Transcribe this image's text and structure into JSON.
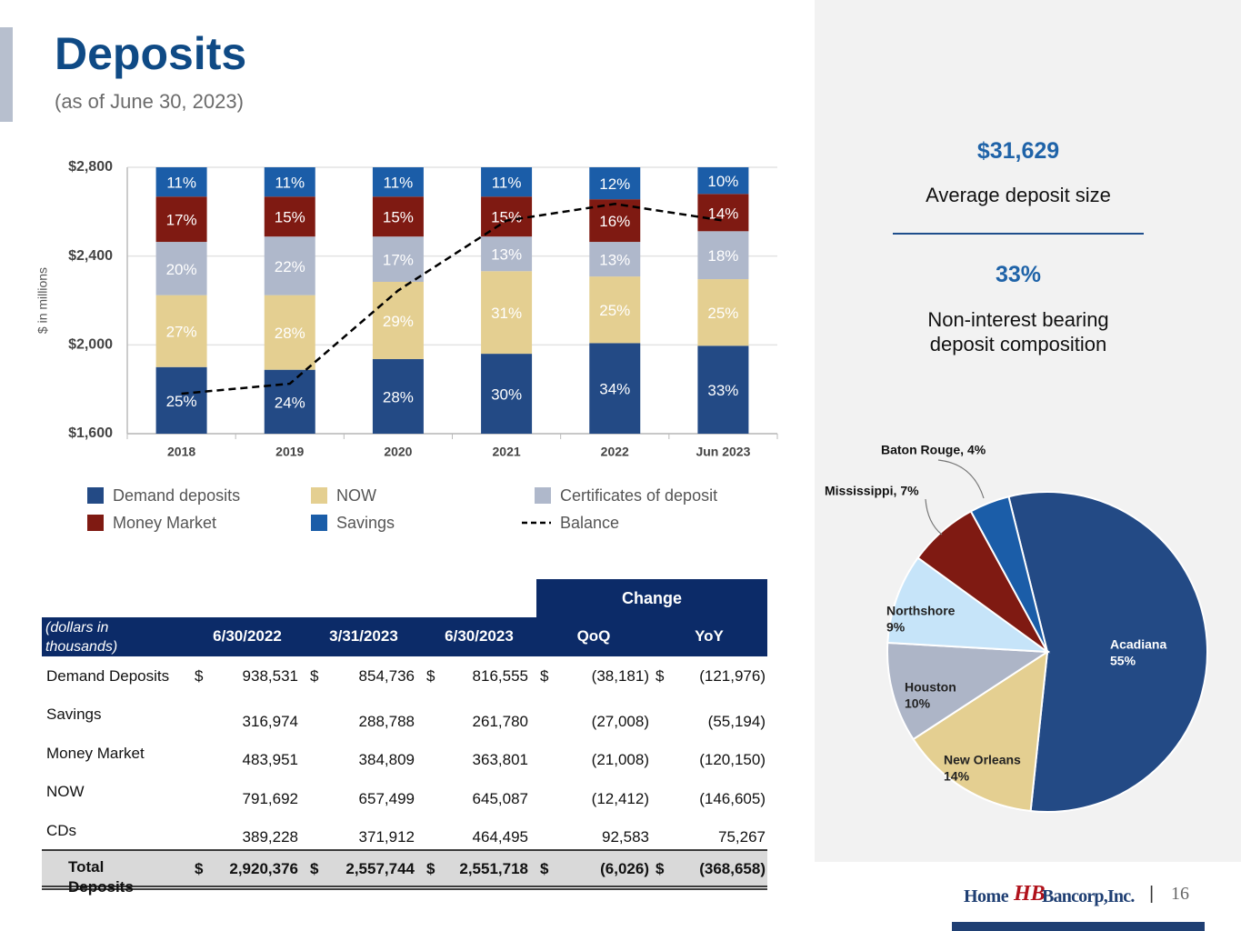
{
  "header": {
    "title": "Deposits",
    "subtitle": "(as of June 30, 2023)"
  },
  "chart_data": [
    {
      "type": "bar",
      "stacked": true,
      "y_axis_label": "$ in millions",
      "categories": [
        "2018",
        "2019",
        "2020",
        "2021",
        "2022",
        "Jun 2023"
      ],
      "ylim": [
        1600,
        2800
      ],
      "yticks": [
        {
          "value": 1600,
          "label": "$1,600"
        },
        {
          "value": 2000,
          "label": "$2,000"
        },
        {
          "value": 2400,
          "label": "$2,400"
        },
        {
          "value": 2800,
          "label": "$2,800"
        }
      ],
      "y2lim": [
        0,
        100
      ],
      "grid": true,
      "series": [
        {
          "name": "Demand deposits",
          "color": "#234a85",
          "axis": "y2",
          "values": [
            25,
            24,
            28,
            30,
            34,
            33
          ],
          "value_labels": [
            "25%",
            "24%",
            "28%",
            "30%",
            "34%",
            "33%"
          ]
        },
        {
          "name": "NOW",
          "color": "#e4cf91",
          "axis": "y2",
          "values": [
            27,
            28,
            29,
            31,
            25,
            25
          ],
          "value_labels": [
            "27%",
            "28%",
            "29%",
            "31%",
            "25%",
            "25%"
          ]
        },
        {
          "name": "Certificates of deposit",
          "color": "#afb8cb",
          "axis": "y2",
          "values": [
            20,
            22,
            17,
            13,
            13,
            18
          ],
          "value_labels": [
            "20%",
            "22%",
            "17%",
            "13%",
            "13%",
            "18%"
          ]
        },
        {
          "name": "Money Market",
          "color": "#7f1a12",
          "axis": "y2",
          "values": [
            17,
            15,
            15,
            15,
            16,
            14
          ],
          "value_labels": [
            "17%",
            "15%",
            "15%",
            "15%",
            "16%",
            "14%"
          ]
        },
        {
          "name": "Savings",
          "color": "#1b5da8",
          "axis": "y2",
          "values": [
            11,
            11,
            11,
            11,
            12,
            10
          ],
          "value_labels": [
            "11%",
            "11%",
            "11%",
            "11%",
            "12%",
            "10%"
          ]
        },
        {
          "name": "Balance",
          "color": "#000000",
          "type": "line",
          "line_style": "dashed",
          "values": [
            1780,
            1825,
            2245,
            2560,
            2635,
            2560
          ]
        }
      ]
    },
    {
      "type": "pie",
      "categories": [
        "Acadiana",
        "New Orleans",
        "Houston",
        "Northshore",
        "Mississippi,",
        "Baton Rouge,"
      ],
      "values": [
        55,
        14,
        10,
        9,
        7,
        4
      ],
      "value_labels": [
        "55%",
        "14%",
        "10%",
        "9%",
        "7%",
        "4%"
      ],
      "colors": [
        "#234a85",
        "#e4cf91",
        "#adb5c7",
        "#c6e4f9",
        "#7f1a12",
        "#1b5da8"
      ]
    }
  ],
  "stats": [
    {
      "value": "$31,629",
      "label": "Average deposit size"
    },
    {
      "value": "33%",
      "label": "Non-interest bearing deposit composition"
    }
  ],
  "table": {
    "group_header": "Change",
    "columns": [
      "(dollars in thousands)",
      "6/30/2022",
      "3/31/2023",
      "6/30/2023",
      "QoQ",
      "YoY"
    ],
    "rows": [
      {
        "label": "Demand Deposits",
        "currency": "$",
        "values": [
          "938,531",
          "854,736",
          "816,555",
          "(38,181)",
          "(121,976)"
        ]
      },
      {
        "label": "Savings",
        "values": [
          "316,974",
          "288,788",
          "261,780",
          "(27,008)",
          "(55,194)"
        ]
      },
      {
        "label": "Money Market",
        "values": [
          "483,951",
          "384,809",
          "363,801",
          "(21,008)",
          "(120,150)"
        ]
      },
      {
        "label": "NOW",
        "values": [
          "791,692",
          "657,499",
          "645,087",
          "(12,412)",
          "(146,605)"
        ]
      },
      {
        "label": "CDs",
        "values": [
          "389,228",
          "371,912",
          "464,495",
          "92,583",
          "75,267"
        ]
      }
    ],
    "total": {
      "label": "Total Deposits",
      "currency": "$",
      "values": [
        "2,920,376",
        "2,557,744",
        "2,551,718",
        "(6,026)",
        "(368,658)"
      ]
    }
  },
  "footer": {
    "logo_left": "Home",
    "logo_mark": "HB",
    "logo_right": "Bancorp,Inc.",
    "separator": "|",
    "page": "16"
  }
}
